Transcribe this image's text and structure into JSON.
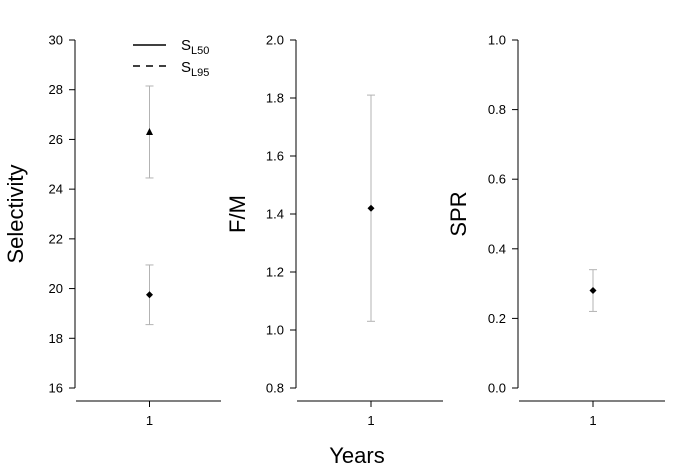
{
  "figure": {
    "xlabel": "Years"
  },
  "chart_data": [
    {
      "type": "scatter",
      "categories": [
        "1"
      ],
      "ylabel": "Selectivity",
      "ylim": [
        16,
        30
      ],
      "yticks": [
        "16",
        "18",
        "20",
        "22",
        "24",
        "26",
        "28",
        "30"
      ],
      "legend_position": "top-right",
      "legend": [
        {
          "label": "S",
          "sub": "L50",
          "line": "solid"
        },
        {
          "label": "S",
          "sub": "L95",
          "line": "dashed"
        }
      ],
      "series": [
        {
          "marker": "diamond",
          "values": [
            19.75
          ],
          "lower": [
            18.55
          ],
          "upper": [
            20.95
          ]
        },
        {
          "marker": "triangle",
          "values": [
            26.3
          ],
          "lower": [
            24.45
          ],
          "upper": [
            28.15
          ]
        }
      ],
      "colors": {
        "point": "#000000",
        "errorbar": "#b3b3b3"
      }
    },
    {
      "type": "scatter",
      "categories": [
        "1"
      ],
      "ylabel": "F/M",
      "ylim": [
        0.8,
        2.0
      ],
      "yticks": [
        "0.8",
        "1.0",
        "1.2",
        "1.4",
        "1.6",
        "1.8",
        "2.0"
      ],
      "series": [
        {
          "marker": "diamond",
          "values": [
            1.42
          ],
          "lower": [
            1.03
          ],
          "upper": [
            1.81
          ]
        }
      ],
      "colors": {
        "point": "#000000",
        "errorbar": "#b3b3b3"
      }
    },
    {
      "type": "scatter",
      "categories": [
        "1"
      ],
      "ylabel": "SPR",
      "ylim": [
        0,
        1.0
      ],
      "yticks": [
        "0.0",
        "0.2",
        "0.4",
        "0.6",
        "0.8",
        "1.0"
      ],
      "series": [
        {
          "marker": "diamond",
          "values": [
            0.28
          ],
          "lower": [
            0.22
          ],
          "upper": [
            0.34
          ]
        }
      ],
      "colors": {
        "point": "#000000",
        "errorbar": "#b3b3b3"
      }
    }
  ]
}
